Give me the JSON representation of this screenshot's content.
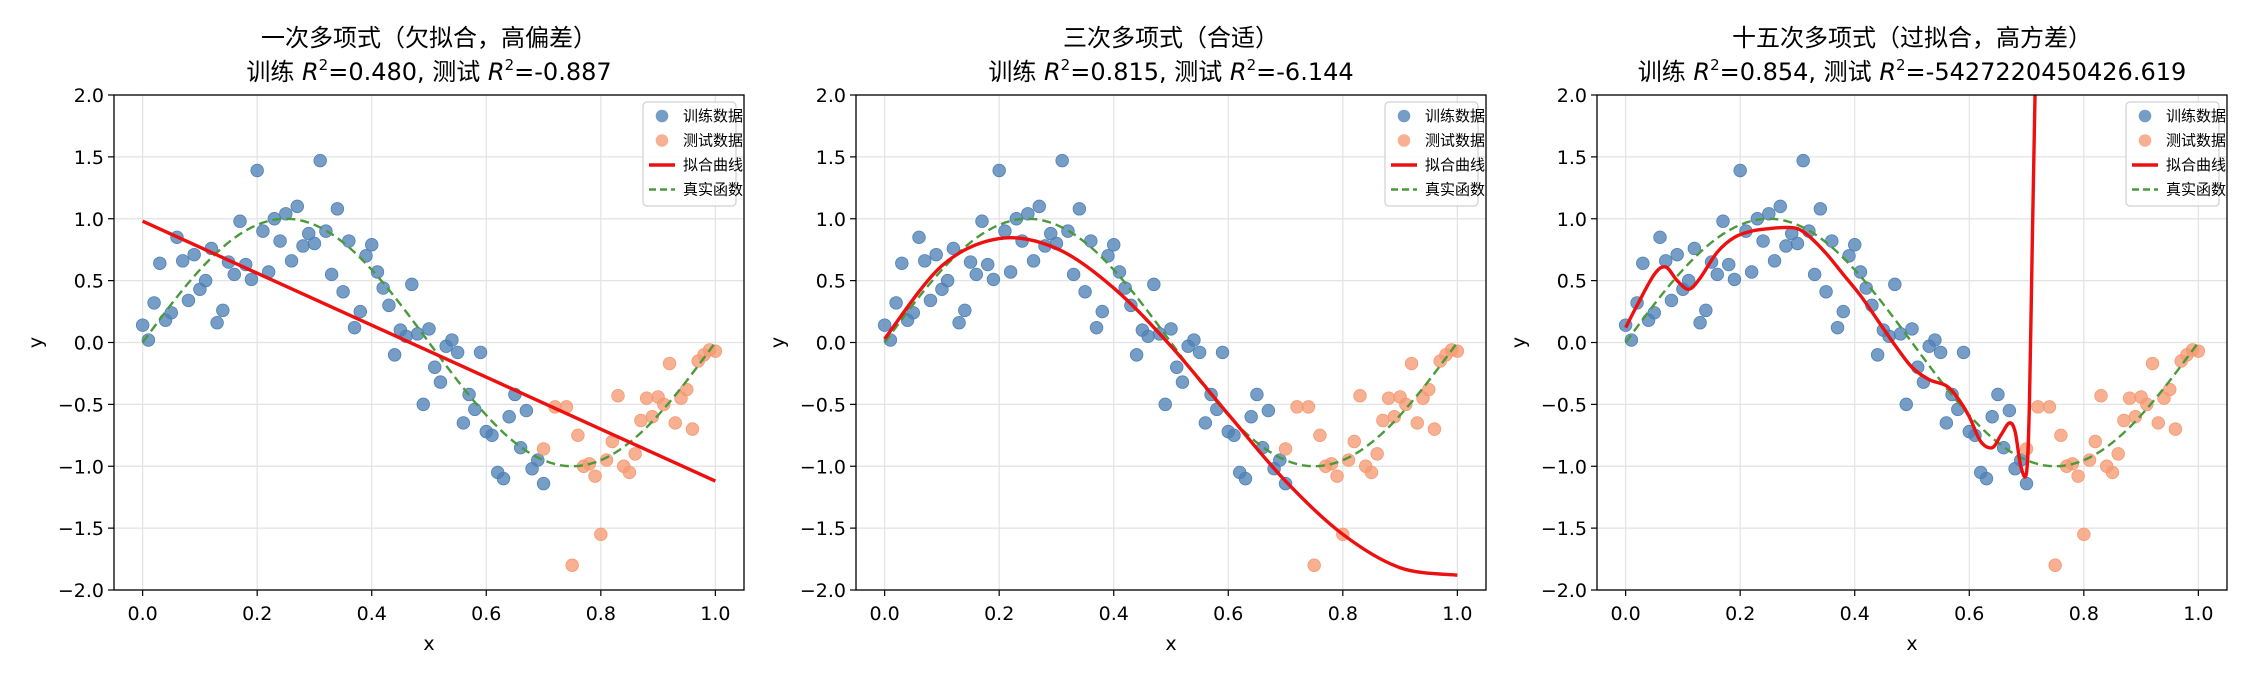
{
  "figure": {
    "xlim": [
      -0.05,
      1.05
    ],
    "ylim": [
      -2.0,
      2.0
    ]
  },
  "chart_data": [
    {
      "type": "scatter",
      "title_line1": "一次多项式（欠拟合，高偏差）",
      "title_line2_prefix": "训练 ",
      "title_line2_mid": "=0.480, 测试 ",
      "title_line2_suffix": "=-0.887",
      "r2_symbol": "R",
      "r2_sup": "2",
      "xlabel": "x",
      "ylabel": "y",
      "xlim": [
        -0.05,
        1.05
      ],
      "ylim": [
        -2.0,
        2.0
      ],
      "xticks": [
        "0.0",
        "0.2",
        "0.4",
        "0.6",
        "0.8",
        "1.0"
      ],
      "yticks": [
        "−2.0",
        "−1.5",
        "−1.0",
        "−0.5",
        "0.0",
        "0.5",
        "1.0",
        "1.5",
        "2.0"
      ],
      "grid": true,
      "legend_position": "top-right",
      "legend": [
        "训练数据",
        "测试数据",
        "拟合曲线",
        "真实函数"
      ],
      "fit_degree": 1,
      "fit_curve": {
        "x": [
          0.0,
          1.0
        ],
        "y": [
          0.98,
          -1.12
        ]
      }
    },
    {
      "type": "scatter",
      "title_line1": "三次多项式（合适）",
      "title_line2_prefix": "训练 ",
      "title_line2_mid": "=0.815, 测试 ",
      "title_line2_suffix": "=-6.144",
      "r2_symbol": "R",
      "r2_sup": "2",
      "xlabel": "x",
      "ylabel": "y",
      "xlim": [
        -0.05,
        1.05
      ],
      "ylim": [
        -2.0,
        2.0
      ],
      "xticks": [
        "0.0",
        "0.2",
        "0.4",
        "0.6",
        "0.8",
        "1.0"
      ],
      "yticks": [
        "−2.0",
        "−1.5",
        "−1.0",
        "−0.5",
        "0.0",
        "0.5",
        "1.0",
        "1.5",
        "2.0"
      ],
      "grid": true,
      "legend_position": "top-right",
      "legend": [
        "训练数据",
        "测试数据",
        "拟合曲线",
        "真实函数"
      ],
      "fit_degree": 3,
      "fit_curve": {
        "x": [
          0.0,
          0.1,
          0.2,
          0.3,
          0.4,
          0.5,
          0.6,
          0.7,
          0.8,
          0.9,
          1.0
        ],
        "y": [
          0.03,
          0.62,
          0.84,
          0.76,
          0.44,
          -0.03,
          -0.58,
          -1.12,
          -1.55,
          -1.82,
          -1.88
        ]
      }
    },
    {
      "type": "scatter",
      "title_line1": "十五次多项式（过拟合，高方差）",
      "title_line2_prefix": "训练 ",
      "title_line2_mid": "=0.854, 测试 ",
      "title_line2_suffix": "=-5427220450426.619",
      "r2_symbol": "R",
      "r2_sup": "2",
      "xlabel": "x",
      "ylabel": "y",
      "xlim": [
        -0.05,
        1.05
      ],
      "ylim": [
        -2.0,
        2.0
      ],
      "xticks": [
        "0.0",
        "0.2",
        "0.4",
        "0.6",
        "0.8",
        "1.0"
      ],
      "yticks": [
        "−2.0",
        "−1.5",
        "−1.0",
        "−0.5",
        "0.0",
        "0.5",
        "1.0",
        "1.5",
        "2.0"
      ],
      "grid": true,
      "legend_position": "top-right",
      "legend": [
        "训练数据",
        "测试数据",
        "拟合曲线",
        "真实函数"
      ],
      "fit_degree": 15,
      "fit_curve": {
        "x": [
          0.0,
          0.02,
          0.05,
          0.07,
          0.09,
          0.11,
          0.13,
          0.16,
          0.19,
          0.22,
          0.25,
          0.28,
          0.3,
          0.32,
          0.35,
          0.38,
          0.41,
          0.44,
          0.47,
          0.5,
          0.53,
          0.56,
          0.58,
          0.6,
          0.62,
          0.64,
          0.655,
          0.67,
          0.68,
          0.69,
          0.7,
          0.705,
          0.71,
          0.715
        ],
        "y": [
          0.12,
          0.3,
          0.55,
          0.61,
          0.5,
          0.43,
          0.52,
          0.73,
          0.85,
          0.9,
          0.92,
          0.93,
          0.92,
          0.86,
          0.72,
          0.55,
          0.38,
          0.18,
          -0.02,
          -0.2,
          -0.3,
          -0.35,
          -0.45,
          -0.6,
          -0.8,
          -0.85,
          -0.75,
          -0.65,
          -0.72,
          -1.0,
          -1.05,
          -0.5,
          0.8,
          2.05
        ]
      }
    }
  ],
  "shared_data": {
    "series": [
      {
        "name": "训练数据",
        "color": "#4f81b6",
        "x": [
          0.0,
          0.01,
          0.02,
          0.03,
          0.04,
          0.05,
          0.06,
          0.07,
          0.08,
          0.09,
          0.1,
          0.11,
          0.12,
          0.13,
          0.14,
          0.15,
          0.16,
          0.17,
          0.18,
          0.19,
          0.2,
          0.21,
          0.22,
          0.23,
          0.24,
          0.25,
          0.26,
          0.27,
          0.28,
          0.29,
          0.3,
          0.31,
          0.32,
          0.33,
          0.34,
          0.35,
          0.36,
          0.37,
          0.38,
          0.39,
          0.4,
          0.41,
          0.42,
          0.43,
          0.44,
          0.45,
          0.46,
          0.47,
          0.48,
          0.49,
          0.5,
          0.51,
          0.52,
          0.53,
          0.54,
          0.55,
          0.56,
          0.57,
          0.58,
          0.59,
          0.6,
          0.61,
          0.62,
          0.63,
          0.64,
          0.65,
          0.66,
          0.67,
          0.68,
          0.69,
          0.7
        ],
        "y": [
          0.14,
          0.02,
          0.32,
          0.64,
          0.18,
          0.24,
          0.85,
          0.66,
          0.34,
          0.71,
          0.43,
          0.5,
          0.76,
          0.16,
          0.26,
          0.65,
          0.55,
          0.98,
          0.63,
          0.51,
          1.39,
          0.9,
          0.57,
          1.0,
          0.82,
          1.04,
          0.66,
          1.1,
          0.78,
          0.88,
          0.8,
          1.47,
          0.9,
          0.55,
          1.08,
          0.41,
          0.82,
          0.12,
          0.25,
          0.7,
          0.79,
          0.57,
          0.44,
          0.3,
          -0.1,
          0.1,
          0.05,
          0.47,
          0.07,
          -0.5,
          0.11,
          -0.2,
          -0.32,
          -0.03,
          0.02,
          -0.08,
          -0.65,
          -0.42,
          -0.54,
          -0.08,
          -0.72,
          -0.75,
          -1.05,
          -1.1,
          -0.6,
          -0.42,
          -0.85,
          -0.55,
          -1.02,
          -0.95,
          -1.14
        ]
      },
      {
        "name": "测试数据",
        "color": "#f59a72",
        "x": [
          0.7,
          0.72,
          0.74,
          0.75,
          0.76,
          0.77,
          0.78,
          0.79,
          0.8,
          0.81,
          0.82,
          0.83,
          0.84,
          0.85,
          0.86,
          0.87,
          0.88,
          0.89,
          0.9,
          0.91,
          0.92,
          0.93,
          0.94,
          0.95,
          0.96,
          0.97,
          0.98,
          0.99,
          1.0
        ],
        "y": [
          -0.86,
          -0.52,
          -0.52,
          -1.8,
          -0.75,
          -1.0,
          -0.98,
          -1.08,
          -1.55,
          -0.95,
          -0.8,
          -0.43,
          -1.0,
          -1.05,
          -0.9,
          -0.63,
          -0.45,
          -0.6,
          -0.44,
          -0.5,
          -0.17,
          -0.65,
          -0.45,
          -0.38,
          -0.7,
          -0.15,
          -0.1,
          -0.06,
          -0.07
        ]
      }
    ],
    "true_function": {
      "name": "真实函数",
      "color": "#4a9a3c",
      "expression": "sin(2πx)",
      "samples": 101
    },
    "fit_color": "#ee1010"
  }
}
